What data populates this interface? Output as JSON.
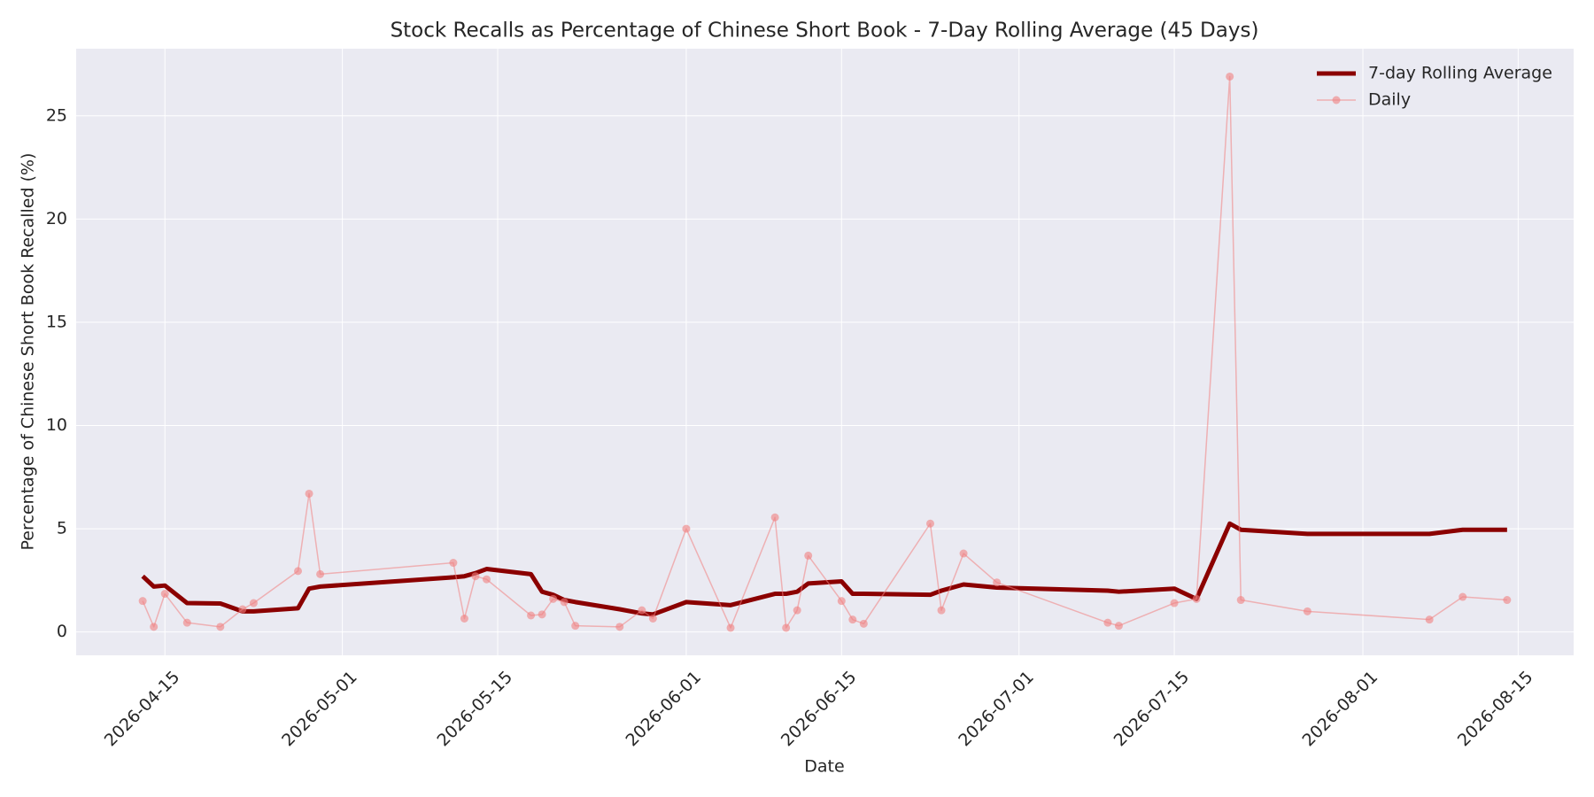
{
  "chart_data": {
    "type": "line",
    "title": "Stock Recalls as Percentage of Chinese Short Book - 7-Day Rolling Average (45 Days)",
    "xlabel": "Date",
    "ylabel": "Percentage of Chinese Short Book Recalled (%)",
    "x": [
      "2026-04-13",
      "2026-04-14",
      "2026-04-15",
      "2026-04-17",
      "2026-04-20",
      "2026-04-22",
      "2026-04-23",
      "2026-04-27",
      "2026-04-28",
      "2026-04-29",
      "2026-05-11",
      "2026-05-12",
      "2026-05-13",
      "2026-05-14",
      "2026-05-18",
      "2026-05-19",
      "2026-05-20",
      "2026-05-21",
      "2026-05-22",
      "2026-05-26",
      "2026-05-28",
      "2026-05-29",
      "2026-06-01",
      "2026-06-05",
      "2026-06-09",
      "2026-06-10",
      "2026-06-11",
      "2026-06-12",
      "2026-06-15",
      "2026-06-16",
      "2026-06-17",
      "2026-06-23",
      "2026-06-24",
      "2026-06-26",
      "2026-06-29",
      "2026-07-09",
      "2026-07-10",
      "2026-07-15",
      "2026-07-17",
      "2026-07-20",
      "2026-07-21",
      "2026-07-27",
      "2026-08-07",
      "2026-08-10",
      "2026-08-14"
    ],
    "series": [
      {
        "name": "7-day Rolling Average",
        "color": "#8b0000",
        "values": [
          2.7,
          2.2,
          2.25,
          1.4,
          1.38,
          1.0,
          1.0,
          1.15,
          2.1,
          2.2,
          2.65,
          2.7,
          2.85,
          3.05,
          2.8,
          1.95,
          1.8,
          1.55,
          1.45,
          1.1,
          0.9,
          0.85,
          1.45,
          1.3,
          1.85,
          1.85,
          1.95,
          2.35,
          2.45,
          1.85,
          1.85,
          1.8,
          2.0,
          2.3,
          2.15,
          2.0,
          1.95,
          2.1,
          1.6,
          5.25,
          4.95,
          4.75,
          4.75,
          4.95,
          4.95
        ]
      },
      {
        "name": "Daily",
        "color": "#f08080",
        "values": [
          1.5,
          0.25,
          1.85,
          0.45,
          0.25,
          1.1,
          1.4,
          2.95,
          6.7,
          2.8,
          3.35,
          0.65,
          2.7,
          2.55,
          0.8,
          0.85,
          1.6,
          1.45,
          0.3,
          0.25,
          1.05,
          0.65,
          5.0,
          0.2,
          5.55,
          0.2,
          1.05,
          3.7,
          1.5,
          0.6,
          0.4,
          5.25,
          1.05,
          3.8,
          2.4,
          0.45,
          0.3,
          1.4,
          1.6,
          26.9,
          1.55,
          1.0,
          0.6,
          1.7,
          1.55
        ]
      }
    ],
    "xlim": [
      "2026-04-07",
      "2026-08-20"
    ],
    "xticks": [
      "2026-04-15",
      "2026-05-01",
      "2026-05-15",
      "2026-06-01",
      "2026-06-15",
      "2026-07-01",
      "2026-07-15",
      "2026-08-01",
      "2026-08-15"
    ],
    "ylim": [
      -1.13,
      28.25
    ],
    "yticks": [
      0,
      5,
      10,
      15,
      20,
      25
    ],
    "grid": true,
    "legend": "upper right"
  }
}
